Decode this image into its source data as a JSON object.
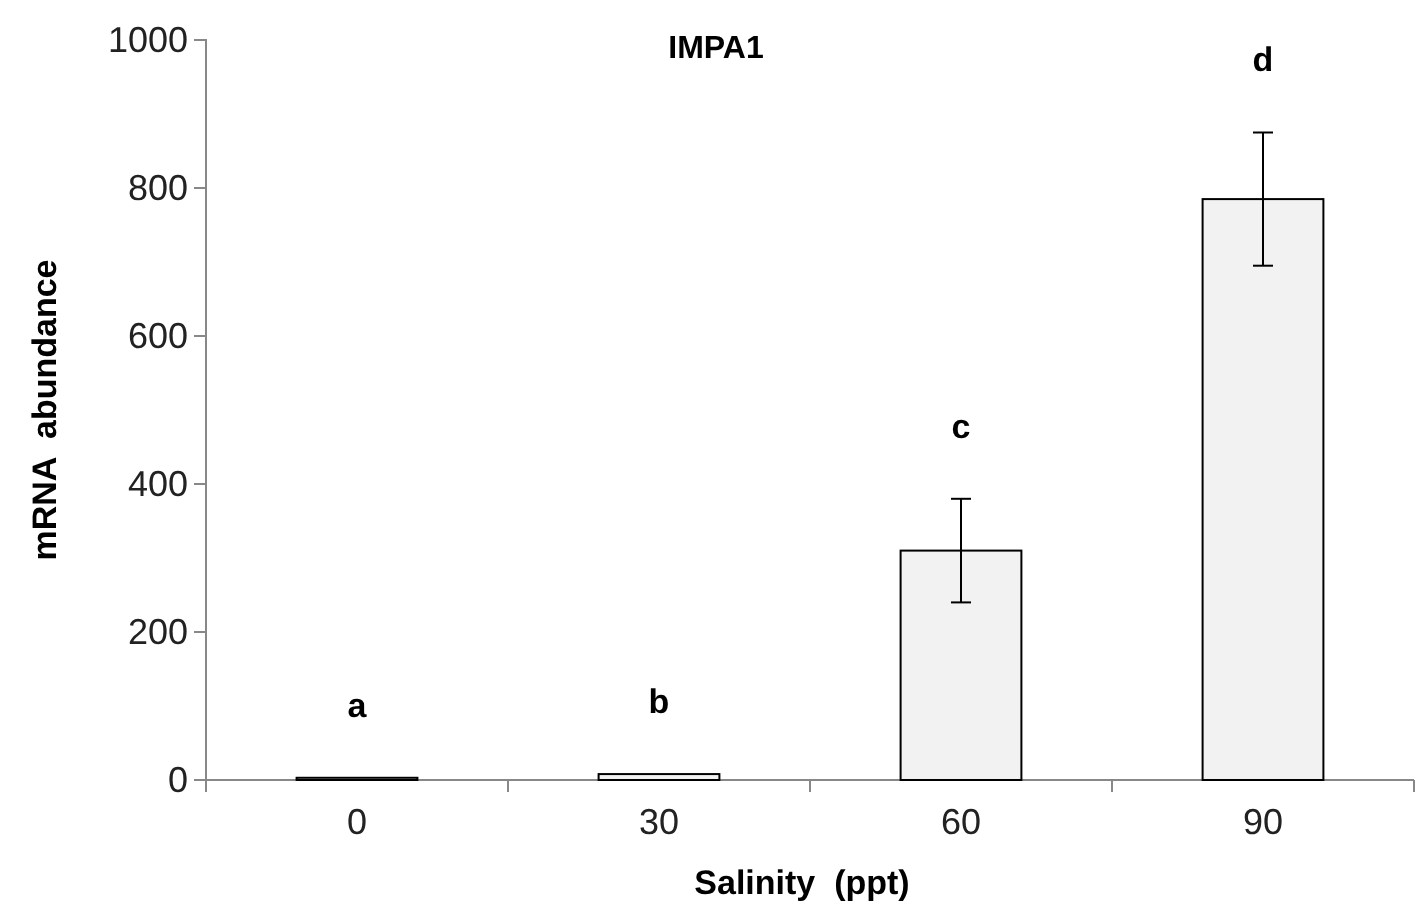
{
  "chart_data": {
    "type": "bar",
    "title": "IMPA1",
    "xlabel": "Salinity  (ppt)",
    "ylabel": "mRNA  abundance",
    "categories": [
      "0",
      "30",
      "60",
      "90"
    ],
    "values": [
      3,
      8,
      310,
      785
    ],
    "errors": [
      null,
      null,
      70,
      90
    ],
    "color": "#f2f2f2",
    "ylim": [
      0,
      1000
    ],
    "yticks": [
      0,
      200,
      400,
      600,
      800,
      1000
    ],
    "annotations": [
      "a",
      "b",
      "c",
      "d"
    ]
  }
}
